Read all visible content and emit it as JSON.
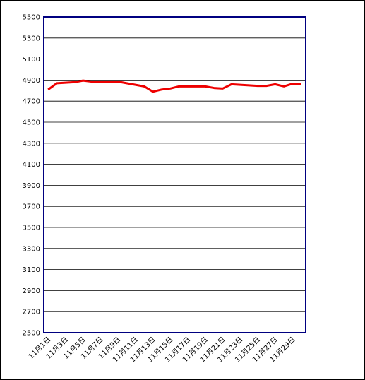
{
  "chart_data": {
    "type": "line",
    "categories": [
      "11月1日",
      null,
      "11月3日",
      null,
      "11月5日",
      null,
      "11月7日",
      null,
      "11月9日",
      null,
      "11月11日",
      null,
      "11月13日",
      null,
      "11月15日",
      null,
      "11月17日",
      null,
      "11月19日",
      null,
      "11月21日",
      null,
      "11月23日",
      null,
      "11月25日",
      null,
      "11月27日",
      null,
      "11月29日",
      null
    ],
    "series": [
      {
        "color": "#ee0000",
        "values": [
          4810,
          4870,
          4875,
          4880,
          4895,
          4885,
          4885,
          4880,
          4885,
          4870,
          4855,
          4840,
          4790,
          4810,
          4820,
          4840,
          4840,
          4840,
          4840,
          4825,
          4820,
          4860,
          4855,
          4850,
          4845,
          4845,
          4860,
          4840,
          4865,
          4865
        ]
      }
    ],
    "ylim": [
      2500,
      5500
    ],
    "yticks": [
      2500,
      2700,
      2900,
      3100,
      3300,
      3500,
      3700,
      3900,
      4100,
      4300,
      4500,
      4700,
      4900,
      5100,
      5300,
      5500
    ],
    "grid": true
  }
}
